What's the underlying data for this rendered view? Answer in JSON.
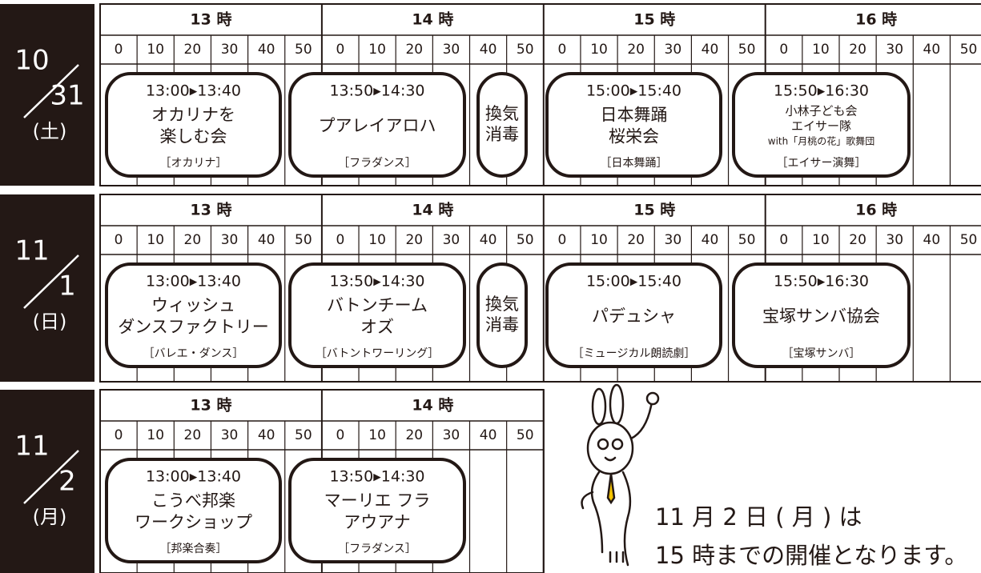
{
  "days": [
    {
      "month": "10",
      "day": "31",
      "weekday": "(土)",
      "hours": [
        "13 時",
        "14 時",
        "15 時",
        "16 時"
      ],
      "minutes": [
        "0",
        "10",
        "20",
        "30",
        "40",
        "50"
      ],
      "events": [
        {
          "time": "13:00▸13:40",
          "title": [
            "オカリナを",
            "楽しむ会"
          ],
          "genre": "［オカリナ］"
        },
        {
          "time": "13:50▸14:30",
          "title": [
            "プアレイアロハ"
          ],
          "genre": "［フラダンス］"
        },
        {
          "title": [
            "換気",
            "消毒"
          ]
        },
        {
          "time": "15:00▸15:40",
          "title": [
            "日本舞踊",
            "桜栄会"
          ],
          "genre": "［日本舞踊］"
        },
        {
          "time": "15:50▸16:30",
          "title": [
            "小林子ども会",
            "エイサー隊",
            "with「月桃の花」歌舞団"
          ],
          "genre": "［エイサー演舞］"
        }
      ]
    },
    {
      "month": "11",
      "day": "1",
      "weekday": "(日)",
      "hours": [
        "13 時",
        "14 時",
        "15 時",
        "16 時"
      ],
      "minutes": [
        "0",
        "10",
        "20",
        "30",
        "40",
        "50"
      ],
      "events": [
        {
          "time": "13:00▸13:40",
          "title": [
            "ウィッシュ",
            "ダンスファクトリー"
          ],
          "genre": "［バレエ・ダンス］"
        },
        {
          "time": "13:50▸14:30",
          "title": [
            "バトンチーム",
            "オズ"
          ],
          "genre": "［バトントワーリング］"
        },
        {
          "title": [
            "換気",
            "消毒"
          ]
        },
        {
          "time": "15:00▸15:40",
          "title": [
            "パデュシャ"
          ],
          "genre": "［ミュージカル朗読劇］"
        },
        {
          "time": "15:50▸16:30",
          "title": [
            "宝塚サンバ協会"
          ],
          "genre": "［宝塚サンバ］"
        }
      ]
    },
    {
      "month": "11",
      "day": "2",
      "weekday": "(月)",
      "hours": [
        "13 時",
        "14 時"
      ],
      "minutes": [
        "0",
        "10",
        "20",
        "30",
        "40",
        "50"
      ],
      "events": [
        {
          "time": "13:00▸13:40",
          "title": [
            "こうべ邦楽",
            "ワークショップ"
          ],
          "genre": "［邦楽合奏］"
        },
        {
          "time": "13:50▸14:30",
          "title": [
            "マーリエ フラ",
            "アウアナ"
          ],
          "genre": "［フラダンス］"
        }
      ]
    }
  ],
  "notice": [
    "11 月 2 日 ( 月 ) は",
    "15 時までの開催となります。"
  ]
}
